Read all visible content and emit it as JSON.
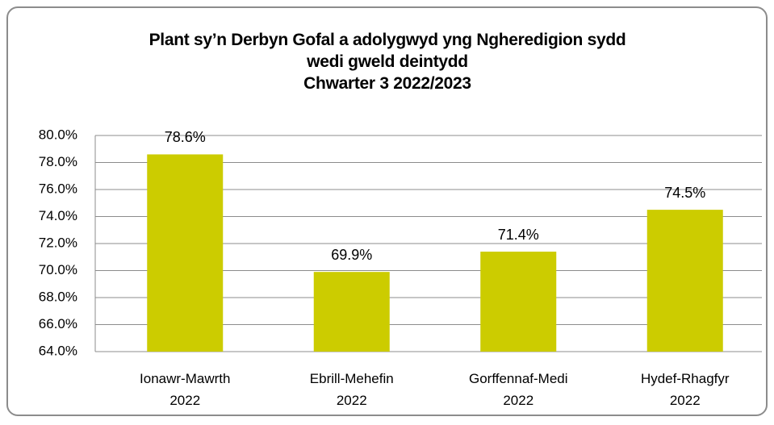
{
  "chart_data": {
    "type": "bar",
    "title": "Plant sy’n Derbyn Gofal a adolygwyd yng Ngheredigion sydd\nwedi gweld deintydd\nChwarter 3  2022/2023",
    "categories": [
      "Ionawr-Mawrth\n2022",
      "Ebrill-Mehefin\n2022",
      "Gorffennaf-Medi\n2022",
      "Hydef-Rhagfyr\n2022"
    ],
    "values": [
      78.6,
      69.9,
      71.4,
      74.5
    ],
    "value_labels": [
      "78.6%",
      "69.9%",
      "71.4%",
      "74.5%"
    ],
    "color": "#cccc00",
    "ylim": [
      64,
      80
    ],
    "yticks": [
      {
        "value": 64,
        "label": "64.0%"
      },
      {
        "value": 66,
        "label": "66.0%"
      },
      {
        "value": 68,
        "label": "68.0%"
      },
      {
        "value": 70,
        "label": "70.0%"
      },
      {
        "value": 72,
        "label": "72.0%"
      },
      {
        "value": 74,
        "label": "74.0%"
      },
      {
        "value": 76,
        "label": "76.0%"
      },
      {
        "value": 78,
        "label": "78.0%"
      },
      {
        "value": 80,
        "label": "80.0%"
      }
    ],
    "grid": true
  }
}
